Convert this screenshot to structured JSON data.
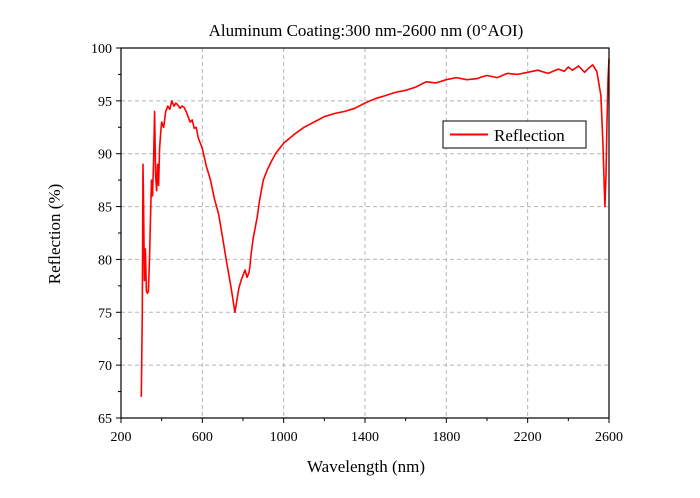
{
  "chart_data": {
    "type": "line",
    "title": "Aluminum Coating:300 nm-2600 nm (0°AOI)",
    "xlabel": "Wavelength (nm)",
    "ylabel": "Reflection (%)",
    "xlim": [
      200,
      2600
    ],
    "ylim": [
      65,
      100
    ],
    "xticks": [
      200,
      600,
      1000,
      1400,
      1800,
      2200,
      2600
    ],
    "yticks": [
      65,
      70,
      75,
      80,
      85,
      90,
      95,
      100
    ],
    "grid": true,
    "legend": {
      "position": "right",
      "entries": [
        "Reflection"
      ]
    },
    "series": [
      {
        "name": "Reflection",
        "color": "#ff0000",
        "x": [
          300,
          305,
          308,
          311,
          315,
          320,
          325,
          330,
          335,
          340,
          345,
          350,
          355,
          360,
          365,
          370,
          375,
          380,
          385,
          390,
          395,
          400,
          410,
          420,
          430,
          440,
          450,
          460,
          470,
          480,
          490,
          500,
          510,
          520,
          530,
          540,
          550,
          560,
          570,
          580,
          590,
          600,
          620,
          640,
          660,
          680,
          700,
          720,
          740,
          760,
          780,
          790,
          800,
          810,
          820,
          830,
          835,
          840,
          845,
          850,
          855,
          860,
          865,
          870,
          880,
          890,
          900,
          920,
          940,
          960,
          980,
          1000,
          1050,
          1100,
          1150,
          1200,
          1250,
          1300,
          1350,
          1400,
          1450,
          1500,
          1550,
          1600,
          1650,
          1700,
          1750,
          1800,
          1850,
          1900,
          1950,
          1980,
          2000,
          2050,
          2100,
          2150,
          2200,
          2250,
          2300,
          2350,
          2380,
          2400,
          2420,
          2450,
          2480,
          2500,
          2520,
          2540,
          2560,
          2570,
          2580,
          2585,
          2590,
          2595,
          2600
        ],
        "y": [
          67,
          75,
          89,
          85,
          78,
          81,
          77,
          76.8,
          77,
          80,
          84,
          87.5,
          86,
          89,
          94,
          88,
          86.5,
          89,
          87,
          90.5,
          92,
          93,
          92.5,
          94,
          94.5,
          94.2,
          95,
          94.5,
          94.8,
          94.6,
          94.3,
          94.5,
          94.4,
          94.0,
          93.5,
          93.0,
          93.2,
          92.4,
          92.5,
          91.5,
          91.0,
          90.5,
          88.8,
          87.5,
          85.7,
          84.3,
          82.0,
          79.7,
          77.5,
          75.0,
          77.3,
          78.0,
          78.5,
          79.0,
          78.3,
          78.8,
          79.5,
          80.5,
          81.3,
          82.0,
          82.5,
          83.0,
          83.5,
          84.0,
          85.4,
          86.5,
          87.5,
          88.5,
          89.3,
          90.0,
          90.5,
          91.0,
          91.8,
          92.5,
          93.0,
          93.5,
          93.8,
          94.0,
          94.3,
          94.8,
          95.2,
          95.5,
          95.8,
          96.0,
          96.3,
          96.8,
          96.7,
          97.0,
          97.2,
          97.0,
          97.1,
          97.3,
          97.4,
          97.2,
          97.6,
          97.5,
          97.7,
          97.9,
          97.6,
          98.0,
          97.8,
          98.2,
          97.9,
          98.3,
          97.7,
          98.1,
          98.4,
          97.8,
          95.5,
          91.0,
          85.0,
          88.0,
          93.0,
          97.0,
          99.0
        ]
      }
    ]
  }
}
